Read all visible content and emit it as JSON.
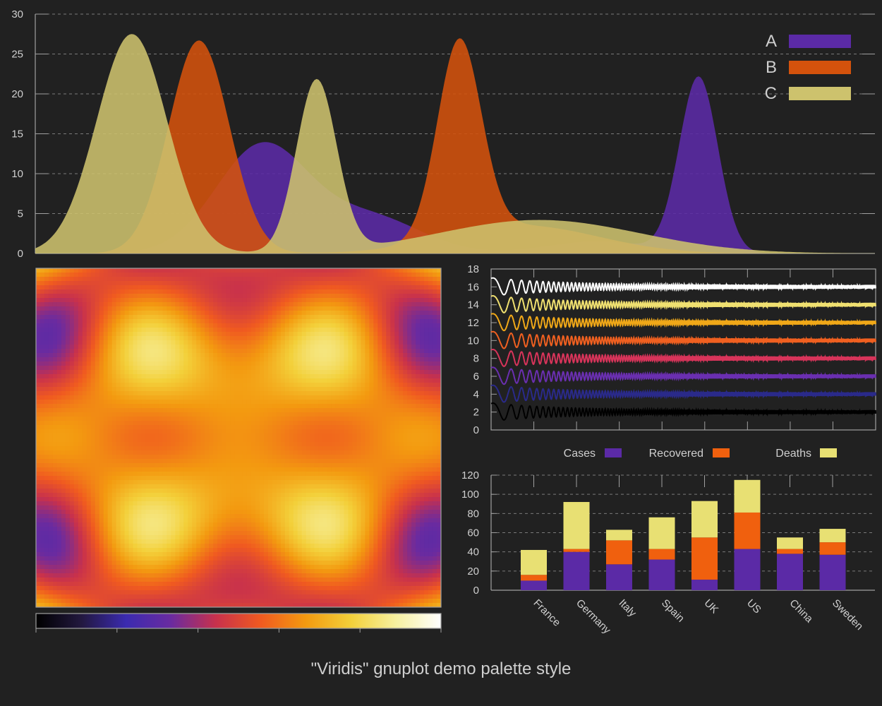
{
  "figure": {
    "title": "\"Viridis\" gnuplot demo palette style",
    "background": "#212121",
    "axis_color": "#a0a0a0",
    "text_color": "#cfcfcf"
  },
  "chart_data": [
    {
      "type": "area",
      "panel": "top-density",
      "title": "",
      "xlabel": "",
      "ylabel": "",
      "xlim": [
        0,
        100
      ],
      "ylim": [
        0,
        30
      ],
      "yticks": [
        0,
        5,
        10,
        15,
        20,
        25,
        30
      ],
      "grid": true,
      "legend": "top-right",
      "series": [
        {
          "name": "A",
          "color": "#5b2aa6",
          "peaks": [
            {
              "center": 27,
              "height": 13.5,
              "width": 5.5
            },
            {
              "center": 40,
              "height": 4.5,
              "width": 6
            },
            {
              "center": 67,
              "height": 1.5,
              "width": 6
            },
            {
              "center": 79,
              "height": 22,
              "width": 2.3
            }
          ]
        },
        {
          "name": "B",
          "color": "#d4520c",
          "peaks": [
            {
              "center": 19.5,
              "height": 26.7,
              "width": 3.6
            },
            {
              "center": 50.5,
              "height": 24.5,
              "width": 2.6
            },
            {
              "center": 58,
              "height": 3.5,
              "width": 9
            }
          ]
        },
        {
          "name": "C",
          "color": "#cdc26d",
          "peaks": [
            {
              "center": 11.5,
              "height": 27.5,
              "width": 4.2
            },
            {
              "center": 33.5,
              "height": 21.5,
              "width": 2.4
            },
            {
              "center": 60,
              "height": 4.2,
              "width": 12
            }
          ]
        }
      ]
    },
    {
      "type": "heatmap",
      "panel": "interference-map",
      "title": "",
      "colorbar": "bottom",
      "palette": [
        "#000000",
        "#22183e",
        "#3b2bb0",
        "#6a2ba0",
        "#c8314c",
        "#f05a20",
        "#f39a10",
        "#f3d03a",
        "#f6f0a0",
        "#ffffff"
      ],
      "colorbar_ticks": 6
    },
    {
      "type": "line",
      "panel": "damped-oscillations",
      "title": "",
      "xlim": [
        0,
        100
      ],
      "ylim": [
        0,
        18
      ],
      "yticks": [
        0,
        2,
        4,
        6,
        8,
        10,
        12,
        14,
        16,
        18
      ],
      "xticks_count": 9,
      "series": [
        {
          "offset": 2,
          "color": "#000000"
        },
        {
          "offset": 4,
          "color": "#2a2a8a"
        },
        {
          "offset": 6,
          "color": "#6a2fb0"
        },
        {
          "offset": 8,
          "color": "#d8345a"
        },
        {
          "offset": 10,
          "color": "#f06020"
        },
        {
          "offset": 12,
          "color": "#f0a818"
        },
        {
          "offset": 14,
          "color": "#f0e070"
        },
        {
          "offset": 16,
          "color": "#ffffff"
        }
      ]
    },
    {
      "type": "bar",
      "panel": "stacked-bars",
      "title": "",
      "stacked": true,
      "ylim": [
        0,
        120
      ],
      "yticks": [
        0,
        20,
        40,
        60,
        80,
        100,
        120
      ],
      "categories": [
        "France",
        "Germany",
        "Italy",
        "Spain",
        "UK",
        "US",
        "China",
        "Sweden"
      ],
      "legend": "top",
      "series": [
        {
          "name": "Cases",
          "color": "#5b2aa6",
          "values": [
            10,
            40,
            27,
            32,
            11,
            43,
            38,
            37
          ]
        },
        {
          "name": "Recovered",
          "color": "#f0600e",
          "values": [
            6,
            3,
            25,
            11,
            44,
            38,
            5,
            13
          ]
        },
        {
          "name": "Deaths",
          "color": "#e8e073",
          "values": [
            26,
            49,
            11,
            33,
            38,
            34,
            12,
            14
          ]
        }
      ]
    }
  ]
}
